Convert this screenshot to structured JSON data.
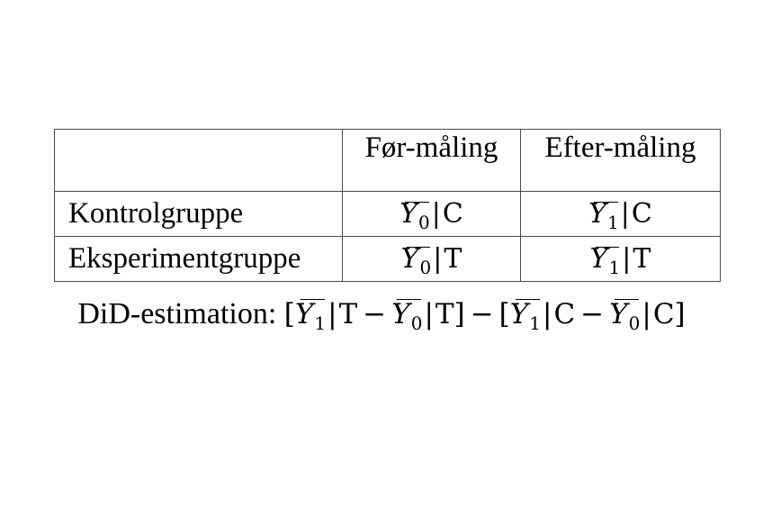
{
  "table": {
    "headers": [
      "",
      "Før-måling",
      "Efter-måling"
    ],
    "rows": [
      {
        "label": "Kontrolgruppe",
        "pre": {
          "symbol": "Y",
          "subscript": "0",
          "separator": "|",
          "group": "C"
        },
        "post": {
          "symbol": "Y",
          "subscript": "1",
          "separator": "|",
          "group": "C"
        }
      },
      {
        "label": "Eksperimentgruppe",
        "pre": {
          "symbol": "Y",
          "subscript": "0",
          "separator": "|",
          "group": "T"
        },
        "post": {
          "symbol": "Y",
          "subscript": "1",
          "separator": "|",
          "group": "T"
        }
      }
    ]
  },
  "formula": {
    "label": "DiD-estimation:",
    "open_bracket": "[",
    "close_bracket": "]",
    "minus": "−",
    "term1": {
      "symbol": "Y",
      "subscript": "1",
      "separator": "|",
      "group": "T"
    },
    "term2": {
      "symbol": "Y",
      "subscript": "0",
      "separator": "|",
      "group": "T"
    },
    "term3": {
      "symbol": "Y",
      "subscript": "1",
      "separator": "|",
      "group": "C"
    },
    "term4": {
      "symbol": "Y",
      "subscript": "0",
      "separator": "|",
      "group": "C"
    }
  }
}
